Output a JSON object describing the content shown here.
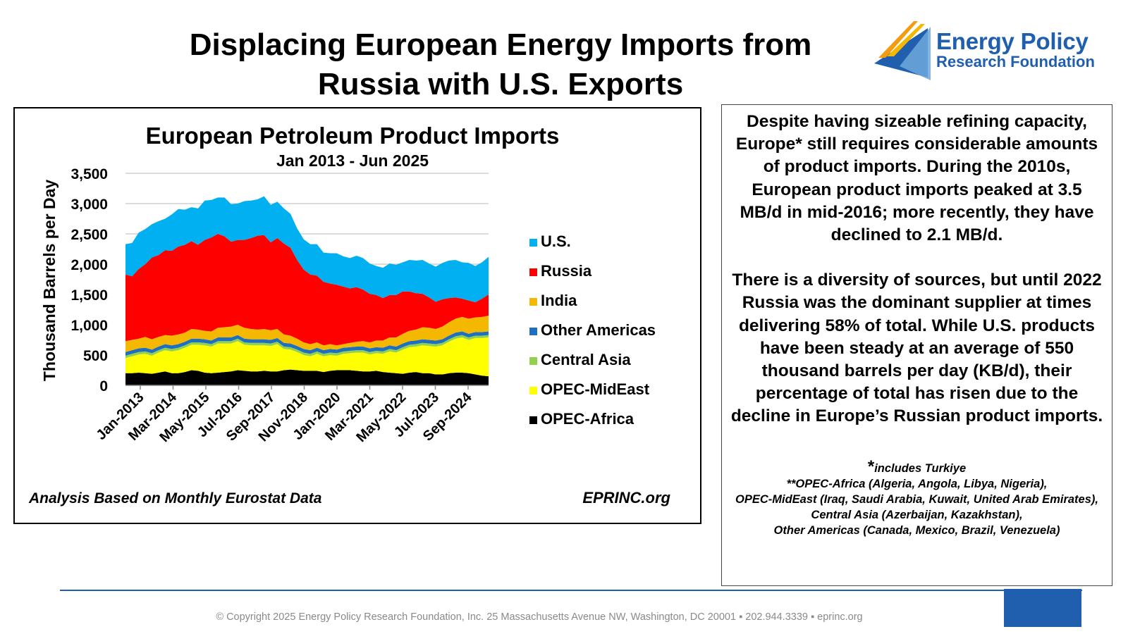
{
  "slide": {
    "title_line1": "Displacing European Energy Imports from",
    "title_line2": "Russia with U.S. Exports"
  },
  "logo": {
    "line1": "Energy Policy",
    "line2": "Research Foundation",
    "colors": {
      "primary": "#1f5fae",
      "light": "#6fa8dc",
      "orange": "#f39c12"
    }
  },
  "chart_data": {
    "type": "area",
    "stacked": true,
    "title": "European Petroleum Product Imports",
    "subtitle": "Jan 2013 - Jun 2025",
    "ylabel": "Thousand Barrels per Day",
    "xlabel": "",
    "ylim": [
      0,
      3500
    ],
    "yticks": [
      "3,500",
      "3,000",
      "2,500",
      "2,000",
      "1,500",
      "1,000",
      "500",
      "0"
    ],
    "ytick_values": [
      3500,
      3000,
      2500,
      2000,
      1500,
      1000,
      500,
      0
    ],
    "xticks": [
      "Jan-2013",
      "Mar-2014",
      "May-2015",
      "Jul-2016",
      "Sep-2017",
      "Nov-2018",
      "Jan-2020",
      "Mar-2021",
      "May-2022",
      "Jul-2023",
      "Sep-2024"
    ],
    "grid": true,
    "legend_position": "right",
    "series": [
      {
        "name": "OPEC-Africa",
        "color": "#000000",
        "values": [
          200,
          200,
          210,
          200,
          190,
          210,
          230,
          200,
          200,
          220,
          250,
          240,
          210,
          200,
          210,
          220,
          230,
          250,
          240,
          230,
          230,
          240,
          230,
          230,
          250,
          260,
          250,
          240,
          240,
          240,
          220,
          240,
          250,
          250,
          250,
          240,
          230,
          230,
          240,
          220,
          210,
          200,
          190,
          210,
          220,
          200,
          200,
          180,
          180,
          200,
          210,
          210,
          200,
          180,
          160,
          150
        ]
      },
      {
        "name": "OPEC-MidEast",
        "color": "#ffff00",
        "values": [
          250,
          280,
          300,
          320,
          300,
          330,
          350,
          360,
          380,
          400,
          420,
          430,
          450,
          440,
          480,
          470,
          460,
          480,
          430,
          430,
          430,
          420,
          420,
          450,
          350,
          330,
          300,
          260,
          240,
          280,
          260,
          260,
          240,
          270,
          280,
          300,
          310,
          280,
          290,
          300,
          350,
          340,
          400,
          420,
          420,
          460,
          450,
          460,
          480,
          520,
          560,
          580,
          550,
          600,
          620,
          640
        ]
      },
      {
        "name": "Central Asia",
        "color": "#92d050",
        "values": [
          40,
          40,
          40,
          40,
          40,
          40,
          40,
          40,
          40,
          40,
          40,
          40,
          40,
          40,
          40,
          40,
          40,
          40,
          40,
          40,
          40,
          40,
          40,
          40,
          40,
          40,
          40,
          40,
          40,
          40,
          40,
          40,
          40,
          40,
          40,
          40,
          40,
          40,
          40,
          40,
          40,
          40,
          40,
          40,
          40,
          40,
          40,
          40,
          40,
          40,
          40,
          40,
          40,
          40,
          40,
          40
        ]
      },
      {
        "name": "Other Americas",
        "color": "#1f6fbf",
        "values": [
          60,
          60,
          60,
          60,
          60,
          60,
          60,
          60,
          60,
          60,
          60,
          60,
          60,
          60,
          60,
          60,
          60,
          60,
          60,
          60,
          60,
          60,
          60,
          60,
          60,
          60,
          60,
          60,
          60,
          60,
          60,
          60,
          60,
          60,
          60,
          60,
          60,
          60,
          60,
          60,
          60,
          60,
          60,
          60,
          60,
          60,
          60,
          60,
          60,
          60,
          60,
          60,
          60,
          60,
          60,
          60
        ]
      },
      {
        "name": "India",
        "color": "#f5b800",
        "values": [
          180,
          170,
          160,
          180,
          170,
          160,
          150,
          160,
          160,
          150,
          160,
          150,
          140,
          150,
          160,
          170,
          180,
          170,
          180,
          170,
          160,
          170,
          160,
          150,
          140,
          130,
          120,
          110,
          100,
          90,
          80,
          80,
          70,
          60,
          70,
          80,
          90,
          100,
          110,
          120,
          130,
          150,
          160,
          170,
          180,
          200,
          200,
          190,
          210,
          220,
          230,
          240,
          250,
          240,
          250,
          260
        ]
      },
      {
        "name": "Russia",
        "color": "#ff0000",
        "values": [
          1100,
          1050,
          1150,
          1200,
          1350,
          1350,
          1400,
          1400,
          1450,
          1450,
          1450,
          1400,
          1500,
          1550,
          1550,
          1500,
          1400,
          1400,
          1450,
          1500,
          1550,
          1550,
          1450,
          1500,
          1500,
          1450,
          1300,
          1200,
          1150,
          1100,
          1050,
          1000,
          1000,
          950,
          900,
          900,
          850,
          800,
          750,
          700,
          700,
          700,
          700,
          650,
          600,
          550,
          500,
          450,
          450,
          400,
          350,
          300,
          300,
          250,
          300,
          350
        ]
      },
      {
        "name": "U.S.",
        "color": "#00b0f0",
        "values": [
          500,
          550,
          600,
          580,
          550,
          560,
          520,
          600,
          620,
          580,
          560,
          600,
          650,
          620,
          600,
          640,
          620,
          600,
          640,
          620,
          600,
          640,
          620,
          600,
          580,
          560,
          520,
          500,
          500,
          520,
          480,
          500,
          520,
          500,
          500,
          520,
          520,
          500,
          480,
          500,
          520,
          500,
          480,
          520,
          540,
          560,
          560,
          580,
          600,
          620,
          620,
          600,
          620,
          600,
          600,
          620
        ]
      }
    ]
  },
  "chart_footer": {
    "left": "Analysis Based on Monthly Eurostat Data",
    "right": "EPRINC.org"
  },
  "textbox": {
    "para1": "Despite having sizeable refining capacity, Europe* still requires considerable amounts of product imports. During the 2010s, European product imports peaked at 3.5 MB/d in mid-2016; more recently, they have declined to 2.1 MB/d.",
    "para2": "There is a diversity of sources, but until 2022 Russia was the dominant supplier at times delivering 58% of total. While U.S. products have been steady at an average of 550 thousand barrels per day (KB/d), their percentage of total has risen due to the decline in Europe’s Russian product imports.",
    "note_star": "*",
    "note1": "includes Turkiye",
    "note2": "**OPEC-Africa (Algeria, Angola, Libya, Nigeria),",
    "note3": "OPEC-MidEast (Iraq, Saudi Arabia, Kuwait, United Arab Emirates),",
    "note4": "Central Asia (Azerbaijan, Kazakhstan),",
    "note5": "Other Americas (Canada, Mexico, Brazil, Venezuela)"
  },
  "footer": {
    "copyright": "© Copyright 2025 Energy Policy Research Foundation, Inc. 25 Massachusetts Avenue NW, Washington, DC 20001 ▪ 202.944.3339 ▪ eprinc.org",
    "accent_color": "#1f5fae"
  }
}
